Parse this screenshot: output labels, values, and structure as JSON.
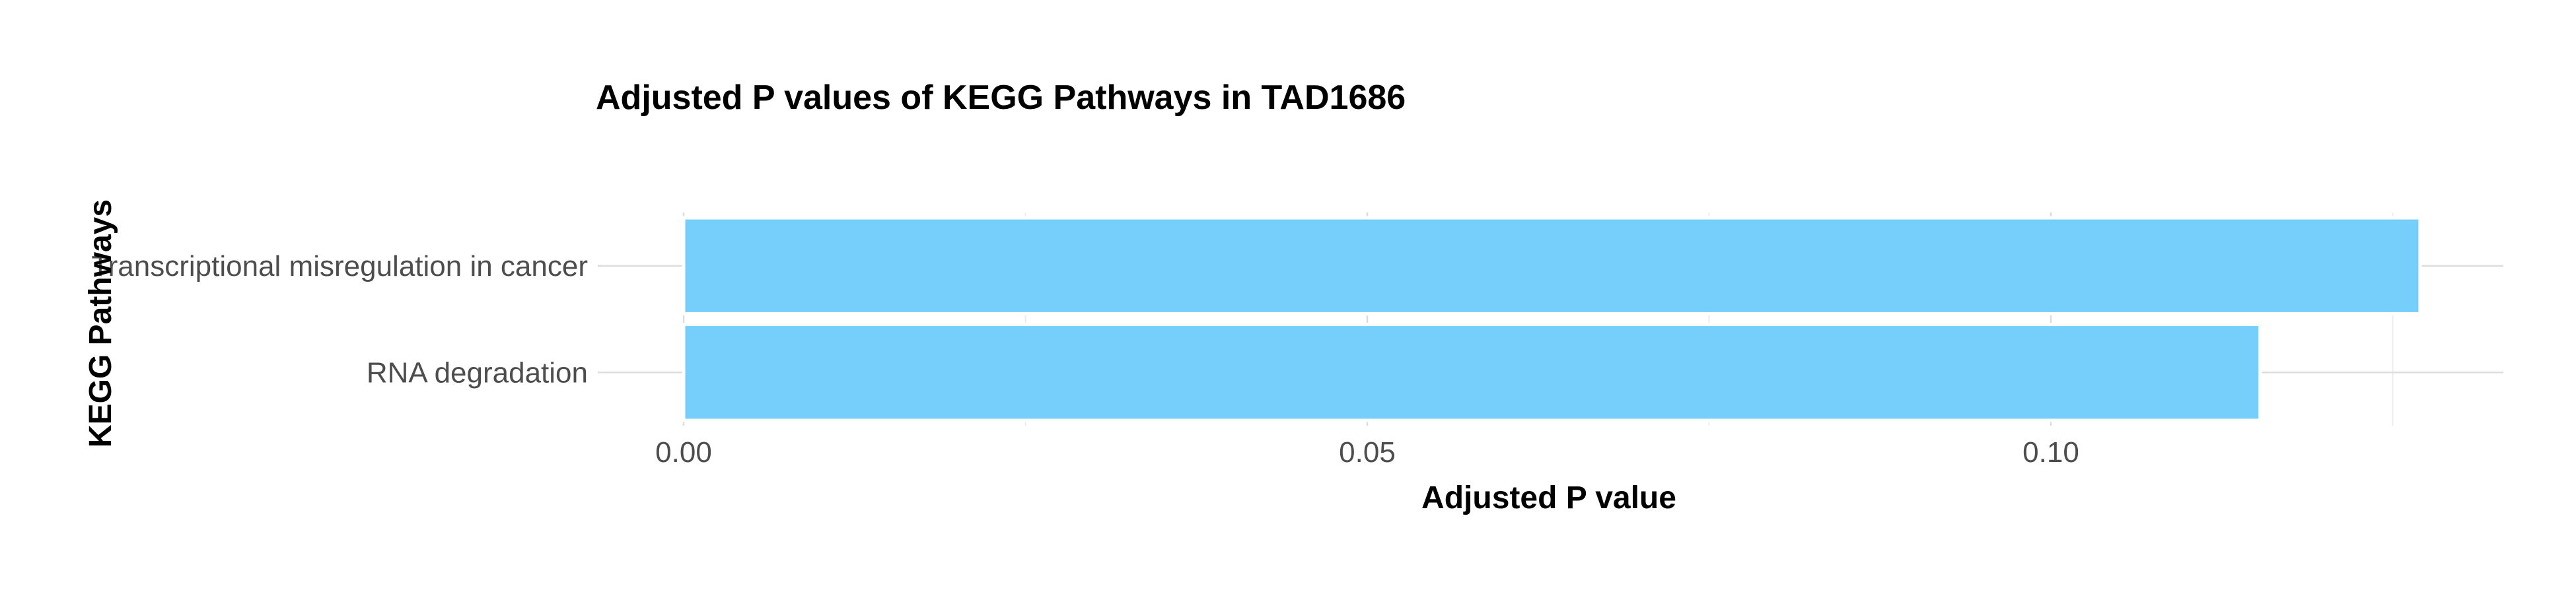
{
  "chart_data": {
    "type": "bar",
    "orientation": "horizontal",
    "title": "Adjusted P values of KEGG Pathways in TAD1686",
    "xlabel": "Adjusted P value",
    "ylabel": "KEGG Pathways",
    "categories": [
      "Transcriptional misregulation in cancer",
      "RNA degradation"
    ],
    "values": [
      0.127,
      0.1153
    ],
    "xlim": [
      0,
      0.133
    ],
    "x_ticks": [
      0,
      0.05,
      0.1
    ],
    "x_tick_labels": [
      "0.00",
      "0.05",
      "0.10"
    ],
    "bar_color": "#75cffa",
    "grid": true,
    "legend": "none"
  }
}
